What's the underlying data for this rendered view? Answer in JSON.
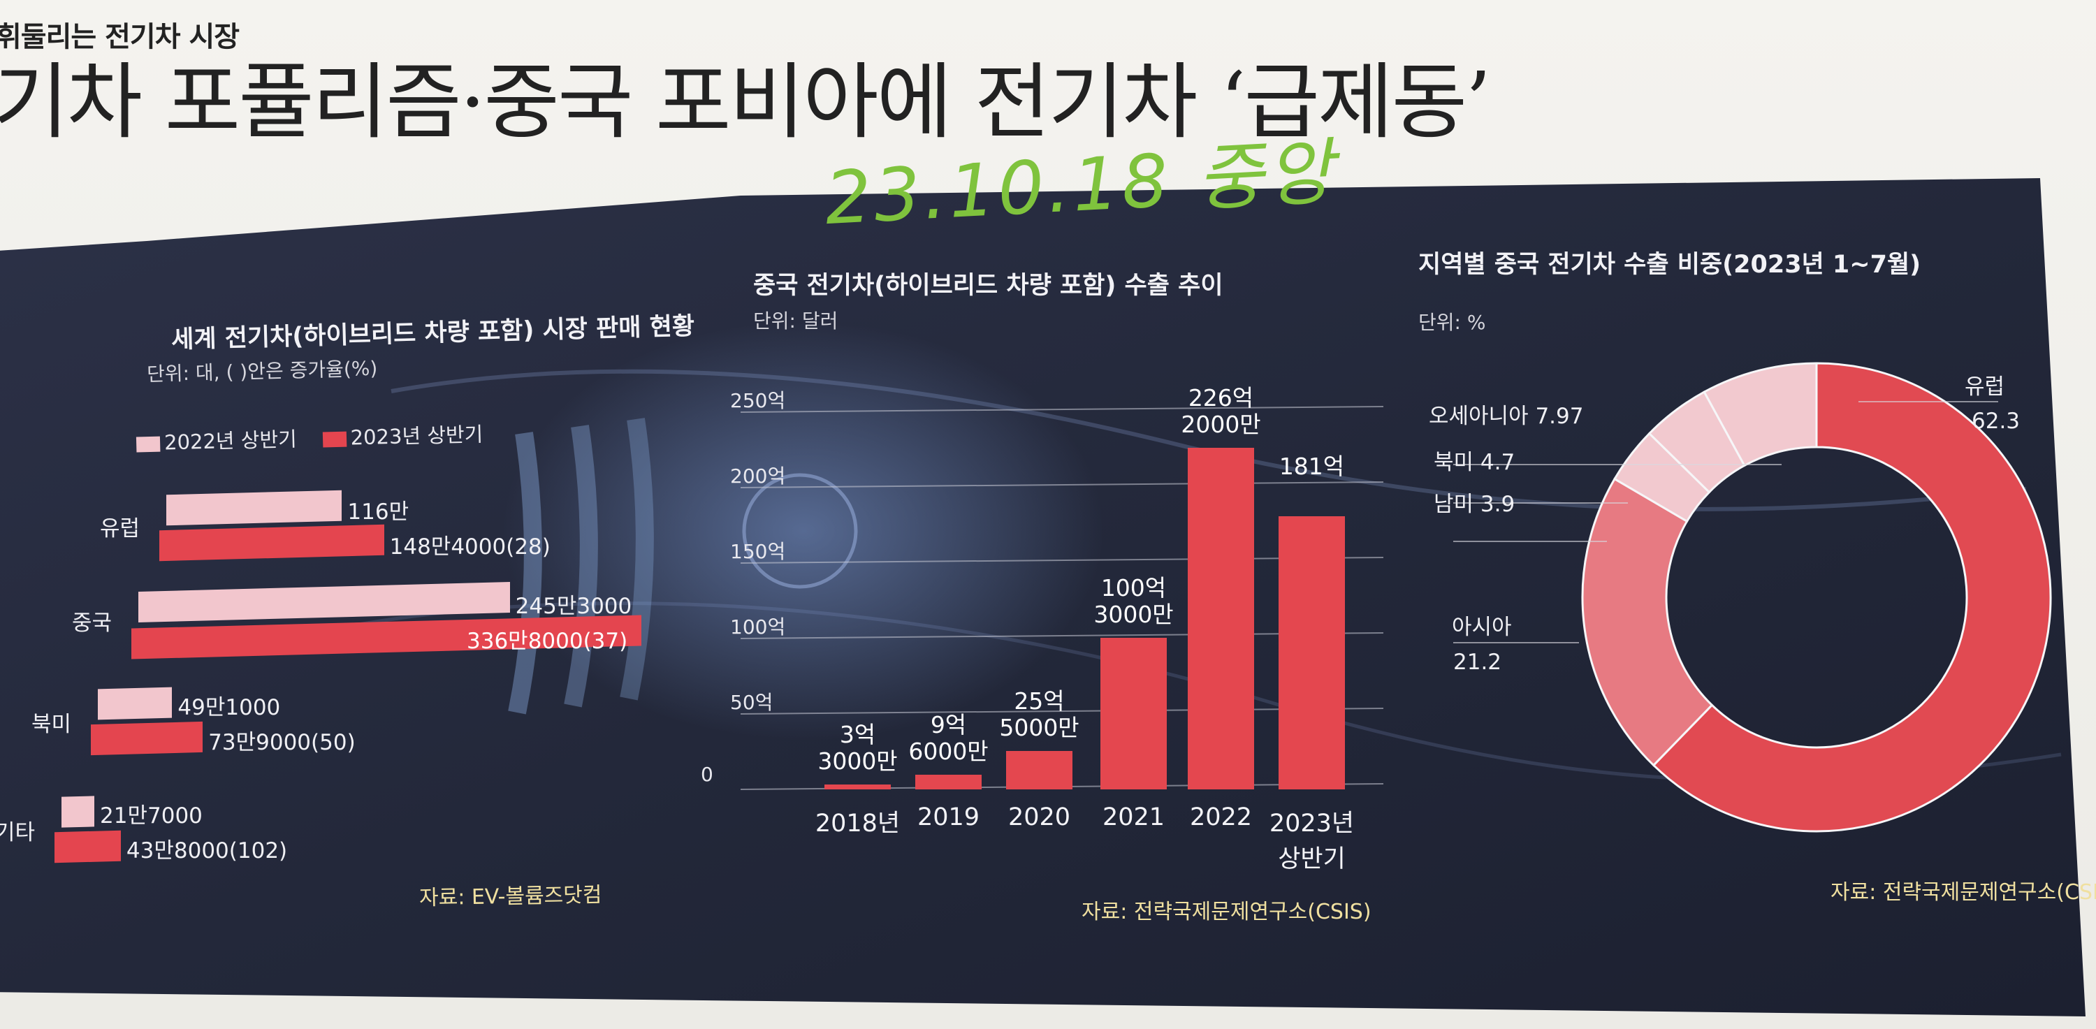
{
  "page": {
    "kicker": "휘둘리는 전기차 시장",
    "headline": "기차 포퓰리즘·중국 포비아에 전기차 ‘급제동’",
    "handwritten_note": "23.10.18 중앙"
  },
  "colors": {
    "panel_bg": "#262a3c",
    "bar_2022": "#f2c6cd",
    "bar_2023": "#e4454f",
    "column": "#e4474f",
    "pie_europe": "#e14a52",
    "pie_asia": "#e77a82",
    "pie_others": "#f2c9cf"
  },
  "chart_data": [
    {
      "type": "bar",
      "orientation": "horizontal",
      "title": "세계 전기차(하이브리드 차량 포함) 시장 판매 현황",
      "unit_note": "단위: 대, ( )안은 증가율(%)",
      "source": "자료: EV-볼륨즈닷컴",
      "categories": [
        "유럽",
        "중국",
        "북미",
        "기타"
      ],
      "series": [
        {
          "name": "2022년 상반기",
          "values": [
            1160000,
            2453000,
            491000,
            217000
          ],
          "labels": [
            "116만",
            "245만3000",
            "49만1000",
            "21만7000"
          ]
        },
        {
          "name": "2023년 상반기",
          "values": [
            1484000,
            3368000,
            739000,
            438000
          ],
          "labels": [
            "148만4000(28)",
            "336만8000(37)",
            "73만9000(50)",
            "43만8000(102)"
          ]
        }
      ]
    },
    {
      "type": "bar",
      "title": "중국 전기차(하이브리드 차량 포함) 수출 추이",
      "unit_note": "단위: 달러",
      "source": "자료: 전략국제문제연구소(CSIS)",
      "categories": [
        "2018년",
        "2019",
        "2020",
        "2021",
        "2022",
        "2023년 상반기"
      ],
      "values": [
        330000000,
        960000000,
        2550000000,
        10030000000,
        22620000000,
        18100000000
      ],
      "value_labels": [
        "3억 3000만",
        "9억 6000만",
        "25억 5000만",
        "100억 3000만",
        "226억 2000만",
        "181억"
      ],
      "yticks": [
        0,
        50,
        100,
        150,
        200,
        250
      ],
      "ytick_labels": [
        "0",
        "50억",
        "100억",
        "150억",
        "200억",
        "250억"
      ],
      "ylim": [
        0,
        25000000000
      ]
    },
    {
      "type": "pie",
      "style": "donut",
      "title": "지역별 중국 전기차 수출 비중(2023년 1~7월)",
      "unit_note": "단위: %",
      "source": "자료: 전략국제문제연구소(CSIS)",
      "slices": [
        {
          "label": "유럽",
          "value": 62.3,
          "value_text": "62.3"
        },
        {
          "label": "아시아",
          "value": 21.2,
          "value_text": "21.2"
        },
        {
          "label": "남미",
          "value": 3.9,
          "value_text": "3.9"
        },
        {
          "label": "북미",
          "value": 4.7,
          "value_text": "4.7"
        },
        {
          "label": "오세아니아",
          "value": 7.97,
          "value_text": "7.97"
        }
      ]
    }
  ]
}
